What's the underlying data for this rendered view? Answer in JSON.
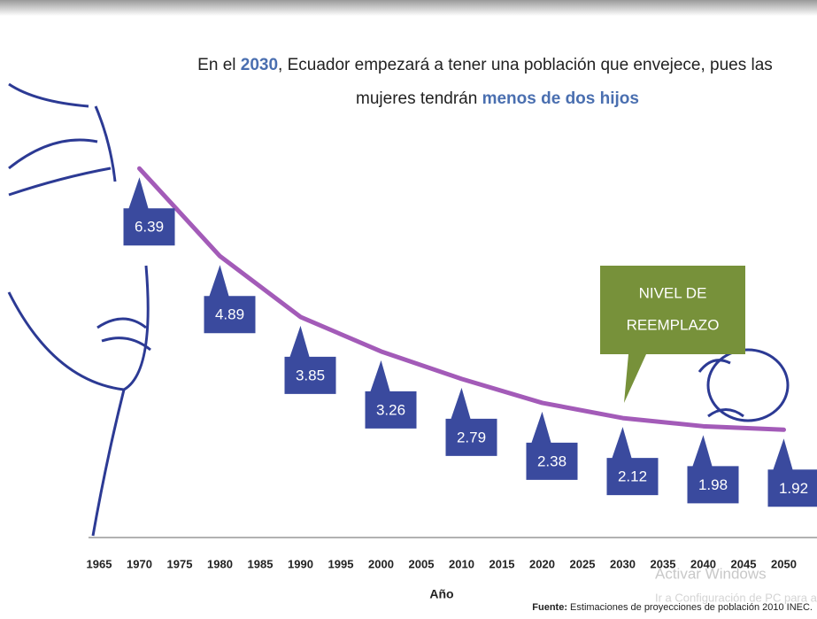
{
  "chart_data": {
    "type": "line",
    "title_parts": [
      "En el ",
      "2030",
      ", Ecuador empezará a tener una población que envejece, pues las",
      "mujeres tendrán ",
      "menos de dos hijos"
    ],
    "x": [
      1970,
      1980,
      1990,
      2000,
      2010,
      2020,
      2030,
      2040,
      2050
    ],
    "values": [
      6.39,
      4.89,
      3.85,
      3.26,
      2.79,
      2.38,
      2.12,
      1.98,
      1.92
    ],
    "color": "#a35bb8",
    "label_color": "#3a4a9e",
    "xticks": [
      1965,
      1970,
      1975,
      1980,
      1985,
      1990,
      1995,
      2000,
      2005,
      2010,
      2015,
      2020,
      2025,
      2030,
      2035,
      2040,
      2045,
      2050
    ],
    "xlabel": "Año",
    "annotation": [
      "NIVEL DE",
      "REEMPLAZO"
    ],
    "source_label": "Fuente:",
    "source": " Estimaciones de proyecciones de población 2010 INEC.",
    "watermark": [
      "Activar Windows",
      "Ir a Configuración de PC para activar Windows."
    ]
  }
}
